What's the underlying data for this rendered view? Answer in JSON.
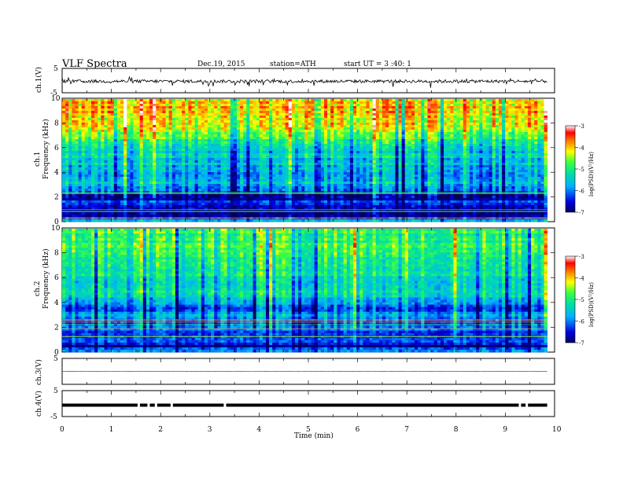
{
  "header": {
    "title": "VLF  Spectra",
    "date": "Dec.19, 2015",
    "station": "station=ATH",
    "start": "start  UT  =   3  :40: 1"
  },
  "chart_data": [
    {
      "type": "line",
      "panel": "ch1-waveform",
      "ylabel": "ch.1(V)",
      "ylim": [
        -5,
        5
      ],
      "yticks": [
        "5",
        "-5"
      ],
      "xlim": [
        0,
        10
      ],
      "note_values": "noisy waveform around -0.3 V with spikes to about -2 V",
      "mean": -0.3
    },
    {
      "type": "heatmap",
      "panel": "ch1-spectrogram",
      "ylabel_top": "ch.1",
      "ylabel": "Frequency  (kHz)",
      "yticks": [
        "0",
        "2",
        "4",
        "6",
        "8",
        "10"
      ],
      "ylim": [
        0,
        10
      ],
      "xlim": [
        0,
        9.85
      ],
      "colorbar": {
        "label": "log(PSD)(V²/Hz)",
        "ticks": [
          "-3",
          "-4",
          "-5",
          "-6",
          "-7"
        ],
        "range": [
          -7,
          -3
        ]
      },
      "profile_khz": [
        0,
        0.5,
        1,
        1.5,
        2,
        2.5,
        3,
        4,
        5,
        6,
        6.5,
        7,
        8,
        9,
        10
      ],
      "profile_logpsd": [
        -5.5,
        -7,
        -6.8,
        -6.2,
        -6.9,
        -6.2,
        -5.6,
        -5.8,
        -5.5,
        -5.4,
        -5.0,
        -4.6,
        -4.2,
        -3.9,
        -4.0
      ]
    },
    {
      "type": "heatmap",
      "panel": "ch2-spectrogram",
      "ylabel_top": "ch.2",
      "ylabel": "Frequency  (kHz)",
      "yticks": [
        "0",
        "2",
        "4",
        "6",
        "8",
        "10"
      ],
      "ylim": [
        0,
        10
      ],
      "xlim": [
        0,
        9.85
      ],
      "colorbar": {
        "label": "log(PSD)(V²/Hz)",
        "ticks": [
          "-3",
          "-4",
          "-5",
          "-6",
          "-7"
        ],
        "range": [
          -7,
          -3
        ]
      },
      "profile_khz": [
        0,
        0.5,
        1,
        1.5,
        2,
        2.5,
        3,
        3.5,
        4,
        5,
        6,
        7,
        8,
        9,
        10
      ],
      "profile_logpsd": [
        -5.5,
        -6.9,
        -6.0,
        -6.5,
        -5.8,
        -6.2,
        -5.7,
        -6.4,
        -5.6,
        -5.3,
        -5.2,
        -5.1,
        -4.9,
        -4.8,
        -4.8
      ]
    },
    {
      "type": "line",
      "panel": "ch3-waveform",
      "ylabel": "ch.3(V)",
      "ylim": [
        -5,
        5
      ],
      "yticks": [
        "5"
      ],
      "xlim": [
        0,
        10
      ],
      "mean": 0.0
    },
    {
      "type": "line",
      "panel": "ch4-waveform",
      "ylabel": "ch.4(V)",
      "ylim": [
        -5,
        5
      ],
      "yticks": [
        "5",
        "-5"
      ],
      "xlim": [
        0,
        10
      ],
      "mean": -0.6
    }
  ],
  "xaxis": {
    "label": "Time  (min)",
    "ticks": [
      "0",
      "1",
      "2",
      "3",
      "4",
      "5",
      "6",
      "7",
      "8",
      "9",
      "10"
    ]
  }
}
